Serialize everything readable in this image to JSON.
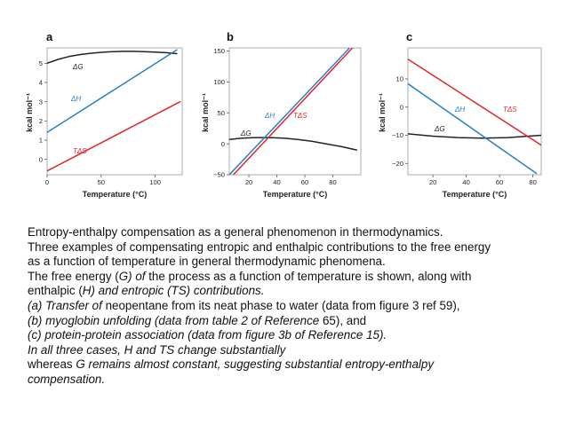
{
  "chart_data": [
    {
      "type": "line",
      "panel": "a",
      "xlabel": "Temperature (°C)",
      "ylabel": "kcal mol⁻¹",
      "xlim": [
        0,
        125
      ],
      "ylim": [
        -0.8,
        5.8
      ],
      "xticks": [
        0,
        50,
        100
      ],
      "yticks": [
        0,
        1,
        2,
        3,
        4,
        5
      ],
      "grid": false,
      "series": [
        {
          "name": "ΔG",
          "color": "#222222",
          "x": [
            0,
            10,
            20,
            30,
            40,
            50,
            60,
            70,
            80,
            90,
            100,
            110,
            120
          ],
          "y": [
            5.0,
            5.2,
            5.35,
            5.45,
            5.52,
            5.57,
            5.6,
            5.62,
            5.62,
            5.6,
            5.58,
            5.55,
            5.5
          ]
        },
        {
          "name": "ΔH",
          "color": "#2a7fc4",
          "x": [
            0,
            120
          ],
          "y": [
            1.4,
            5.7
          ]
        },
        {
          "name": "TΔS",
          "color": "#e0252a",
          "x": [
            0,
            123
          ],
          "y": [
            -0.6,
            3.0
          ]
        }
      ]
    },
    {
      "type": "line",
      "panel": "b",
      "xlabel": "Temperature (°C)",
      "ylabel": "kcal mol⁻¹",
      "xlim": [
        6,
        100
      ],
      "ylim": [
        -50,
        155
      ],
      "xticks": [
        20,
        40,
        60,
        80
      ],
      "yticks": [
        -50,
        0,
        50,
        100,
        150
      ],
      "grid": false,
      "series": [
        {
          "name": "ΔG",
          "color": "#222222",
          "x": [
            6,
            15,
            25,
            35,
            45,
            55,
            65,
            75,
            85,
            97
          ],
          "y": [
            7,
            9,
            10,
            10,
            9,
            7,
            4,
            0,
            -4,
            -10
          ]
        },
        {
          "name": "ΔH",
          "color": "#2a7fc4",
          "x": [
            6,
            92
          ],
          "y": [
            -50,
            155
          ]
        },
        {
          "name": "TΔS",
          "color": "#e0252a",
          "x": [
            9,
            94
          ],
          "y": [
            -50,
            155
          ]
        }
      ]
    },
    {
      "type": "line",
      "panel": "c",
      "xlabel": "Temperature (°C)",
      "ylabel": "kcal mol⁻¹",
      "xlim": [
        5,
        85
      ],
      "ylim": [
        -24,
        21
      ],
      "xticks": [
        20,
        40,
        60,
        80
      ],
      "yticks": [
        -20,
        -10,
        0,
        10
      ],
      "grid": false,
      "series": [
        {
          "name": "ΔG",
          "color": "#222222",
          "x": [
            5,
            20,
            35,
            50,
            65,
            85
          ],
          "y": [
            -9.5,
            -10.3,
            -10.8,
            -11.0,
            -10.8,
            -10.0
          ]
        },
        {
          "name": "ΔH",
          "color": "#2a7fc4",
          "x": [
            5,
            82
          ],
          "y": [
            8.3,
            -23.5
          ]
        },
        {
          "name": "TΔS",
          "color": "#e0252a",
          "x": [
            5,
            85
          ],
          "y": [
            17,
            -13.5
          ]
        }
      ]
    }
  ],
  "caption": {
    "l1": "Entropy-enthalpy compensation as a general phenomenon in thermodynamics.",
    "l2": "Three examples of compensating entropic and enthalpic contributions to the free energy",
    "l3": "as a function of temperature in general thermodynamic phenomena.",
    "l4a": "The free energy (",
    "l4b": "G) of ",
    "l4c": " the process as a function of temperature is shown, along with",
    "l5a": "enthalpic (",
    "l5b": "H) and entropic (TS) contributions.",
    "l6a": "(a)  Transfer of ",
    "l6b": "neopentane from its neat phase to water (data from figure 3 ref 59),",
    "l7a": "(b) myoglobin unfolding (data from table 2 of Reference ",
    "l7b": "65), and",
    "l8a": "(c) protein-protein association (data from figure 3b of Reference 15).",
    "l9": "In all three cases, H and TS change substantially",
    "l10a": "whereas ",
    "l10b": "G remains almost constant, suggesting substantial entropy-enthalpy",
    "l11": "compensation."
  }
}
